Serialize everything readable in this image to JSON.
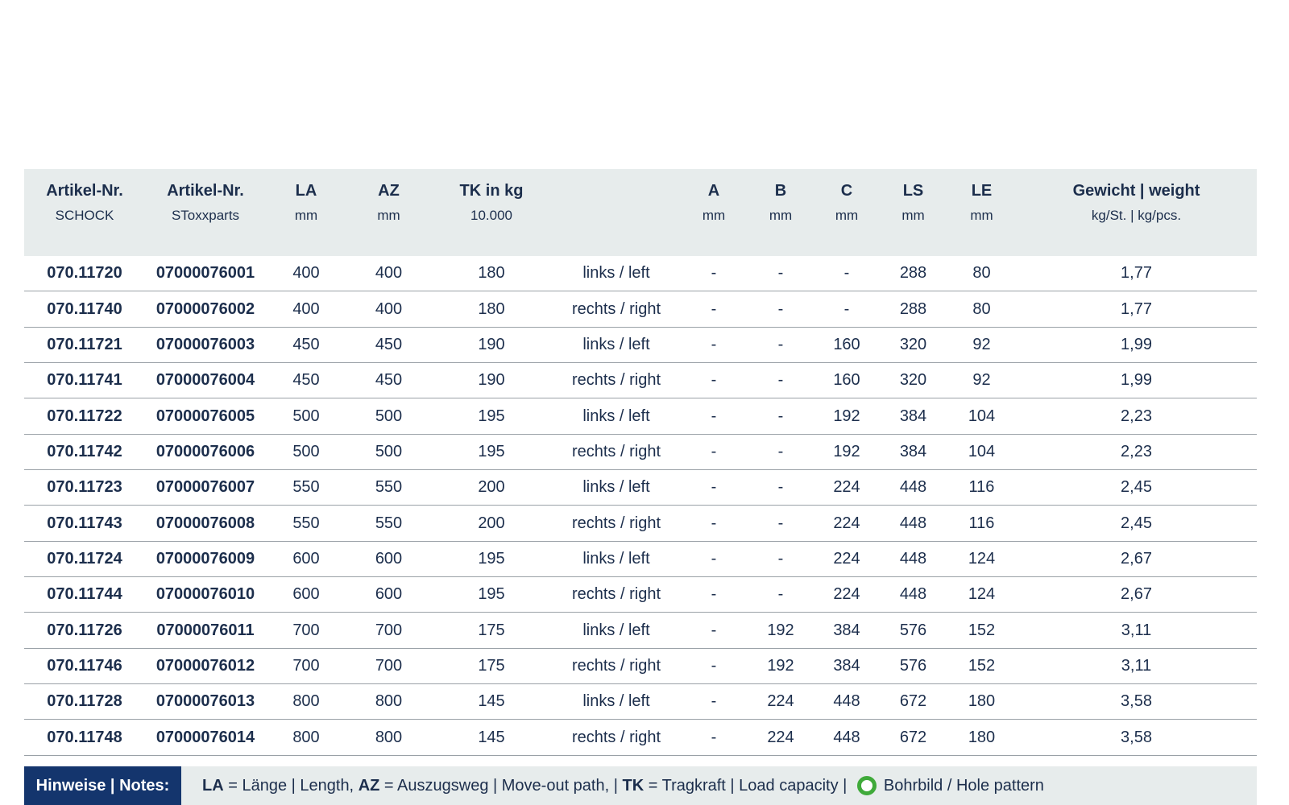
{
  "table": {
    "columns": [
      {
        "label": "Artikel-Nr.",
        "sub": "SCHOCK"
      },
      {
        "label": "Artikel-Nr.",
        "sub": "SToxxparts"
      },
      {
        "label": "LA",
        "sub": "mm"
      },
      {
        "label": "AZ",
        "sub": "mm"
      },
      {
        "label": "TK in kg",
        "sub": "10.000"
      },
      {
        "label": "",
        "sub": ""
      },
      {
        "label": "A",
        "sub": "mm"
      },
      {
        "label": "B",
        "sub": "mm"
      },
      {
        "label": "C",
        "sub": "mm"
      },
      {
        "label": "LS",
        "sub": "mm"
      },
      {
        "label": "LE",
        "sub": "mm"
      },
      {
        "label": "Gewicht | weight",
        "sub": "kg/St. | kg/pcs."
      }
    ],
    "rows": [
      [
        "070.11720",
        "07000076001",
        "400",
        "400",
        "180",
        "links / left",
        "-",
        "-",
        "-",
        "288",
        "80",
        "1,77"
      ],
      [
        "070.11740",
        "07000076002",
        "400",
        "400",
        "180",
        "rechts / right",
        "-",
        "-",
        "-",
        "288",
        "80",
        "1,77"
      ],
      [
        "070.11721",
        "07000076003",
        "450",
        "450",
        "190",
        "links / left",
        "-",
        "-",
        "160",
        "320",
        "92",
        "1,99"
      ],
      [
        "070.11741",
        "07000076004",
        "450",
        "450",
        "190",
        "rechts / right",
        "-",
        "-",
        "160",
        "320",
        "92",
        "1,99"
      ],
      [
        "070.11722",
        "07000076005",
        "500",
        "500",
        "195",
        "links / left",
        "-",
        "-",
        "192",
        "384",
        "104",
        "2,23"
      ],
      [
        "070.11742",
        "07000076006",
        "500",
        "500",
        "195",
        "rechts / right",
        "-",
        "-",
        "192",
        "384",
        "104",
        "2,23"
      ],
      [
        "070.11723",
        "07000076007",
        "550",
        "550",
        "200",
        "links / left",
        "-",
        "-",
        "224",
        "448",
        "116",
        "2,45"
      ],
      [
        "070.11743",
        "07000076008",
        "550",
        "550",
        "200",
        "rechts / right",
        "-",
        "-",
        "224",
        "448",
        "116",
        "2,45"
      ],
      [
        "070.11724",
        "07000076009",
        "600",
        "600",
        "195",
        "links / left",
        "-",
        "-",
        "224",
        "448",
        "124",
        "2,67"
      ],
      [
        "070.11744",
        "07000076010",
        "600",
        "600",
        "195",
        "rechts / right",
        "-",
        "-",
        "224",
        "448",
        "124",
        "2,67"
      ],
      [
        "070.11726",
        "07000076011",
        "700",
        "700",
        "175",
        "links / left",
        "-",
        "192",
        "384",
        "576",
        "152",
        "3,11"
      ],
      [
        "070.11746",
        "07000076012",
        "700",
        "700",
        "175",
        "rechts / right",
        "-",
        "192",
        "384",
        "576",
        "152",
        "3,11"
      ],
      [
        "070.11728",
        "07000076013",
        "800",
        "800",
        "145",
        "links / left",
        "-",
        "224",
        "448",
        "672",
        "180",
        "3,58"
      ],
      [
        "070.11748",
        "07000076014",
        "800",
        "800",
        "145",
        "rechts / right",
        "-",
        "224",
        "448",
        "672",
        "180",
        "3,58"
      ]
    ],
    "bold_columns": [
      0,
      1
    ]
  },
  "notes": {
    "label": "Hinweise | Notes:",
    "segments": [
      {
        "type": "text",
        "bold": true,
        "text": "LA"
      },
      {
        "type": "text",
        "bold": false,
        "text": " = Länge | Length, "
      },
      {
        "type": "text",
        "bold": true,
        "text": "AZ"
      },
      {
        "type": "text",
        "bold": false,
        "text": " = Auszugsweg | Move-out path, | "
      },
      {
        "type": "text",
        "bold": true,
        "text": "TK"
      },
      {
        "type": "text",
        "bold": false,
        "text": " = Tragkraft | Load capacity | "
      },
      {
        "type": "icon",
        "name": "hole-pattern-icon"
      },
      {
        "type": "text",
        "bold": false,
        "text": "Bohrbild / Hole pattern"
      }
    ]
  },
  "colors": {
    "text": "#1c2e4c",
    "header_bg": "#e7ecec",
    "notes_bg": "#e7ecec",
    "notes_box_bg": "#14356d",
    "divider": "#9aa1a7",
    "hole_pattern_green": "#3faa3a"
  }
}
